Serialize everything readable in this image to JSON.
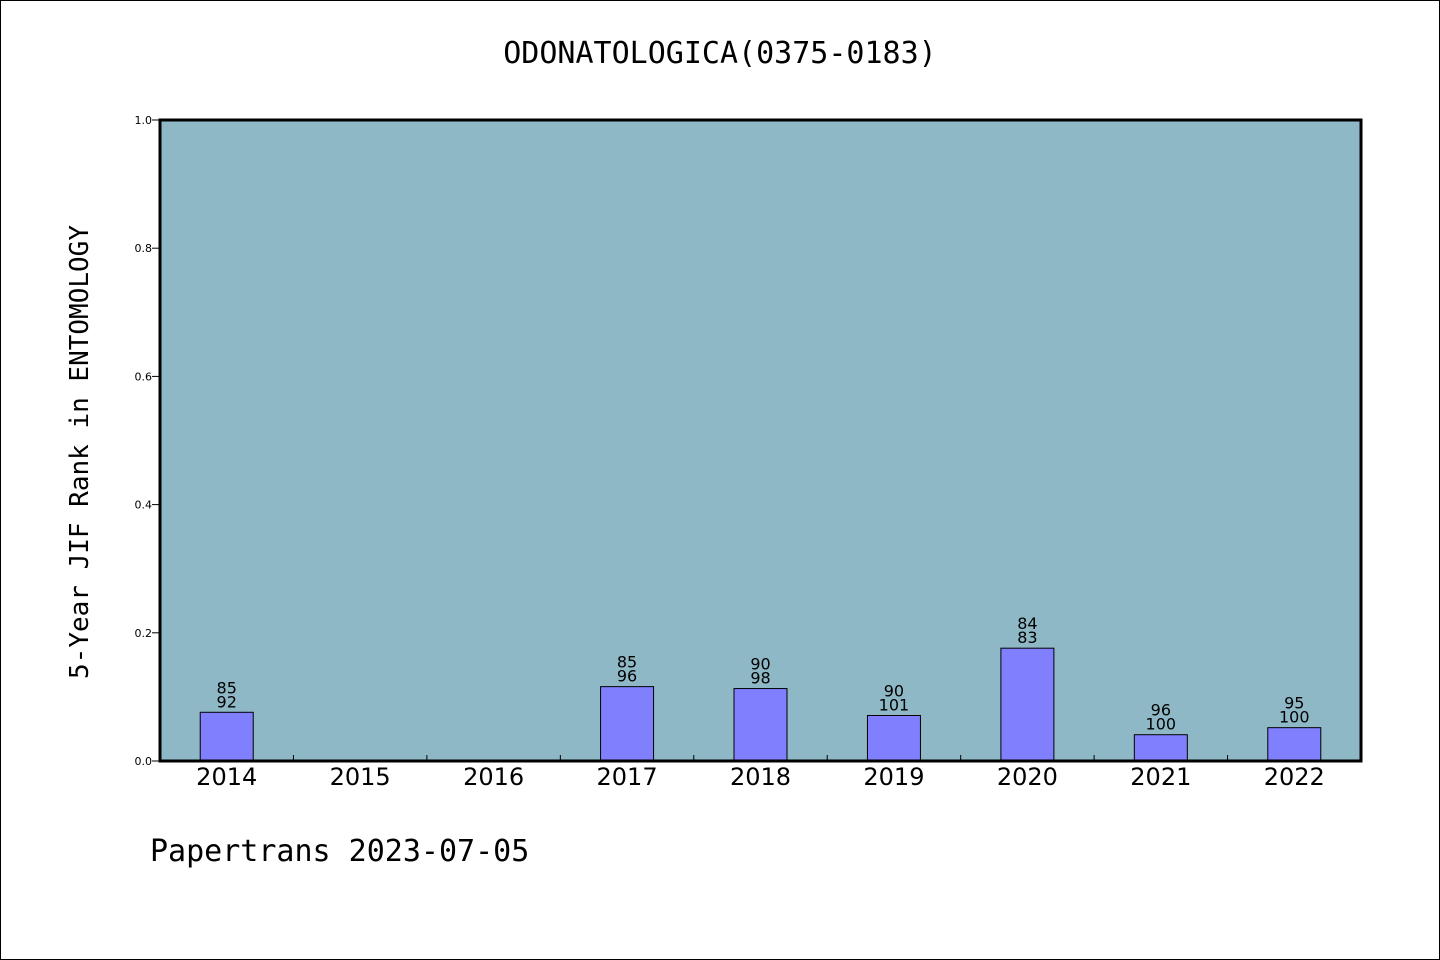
{
  "chart_data": {
    "type": "bar",
    "title": "ODONATOLOGICA(0375-0183)",
    "ylabel": "5-Year JIF Rank in ENTOMOLOGY",
    "xlabel": "",
    "categories": [
      "2014",
      "2015",
      "2016",
      "2017",
      "2018",
      "2019",
      "2020",
      "2021",
      "2022"
    ],
    "values": [
      0.076,
      null,
      null,
      0.116,
      0.113,
      0.071,
      0.176,
      0.041,
      0.052
    ],
    "bar_labels": [
      [
        "85",
        "92"
      ],
      null,
      null,
      [
        "85",
        "96"
      ],
      [
        "90",
        "98"
      ],
      [
        "90",
        "101"
      ],
      [
        "84",
        "83"
      ],
      [
        "96",
        "100"
      ],
      [
        "95",
        "100"
      ]
    ],
    "ylim": [
      0.0,
      1.0
    ],
    "yticks": [
      "0.0",
      "0.2",
      "0.4",
      "0.6",
      "0.8",
      "1.0"
    ],
    "grid": false,
    "colors": {
      "plot_background": "#8fb8c6",
      "bar_fill": "#8080ff",
      "bar_stroke": "#000000"
    }
  },
  "footer": "Papertrans 2023-07-05"
}
